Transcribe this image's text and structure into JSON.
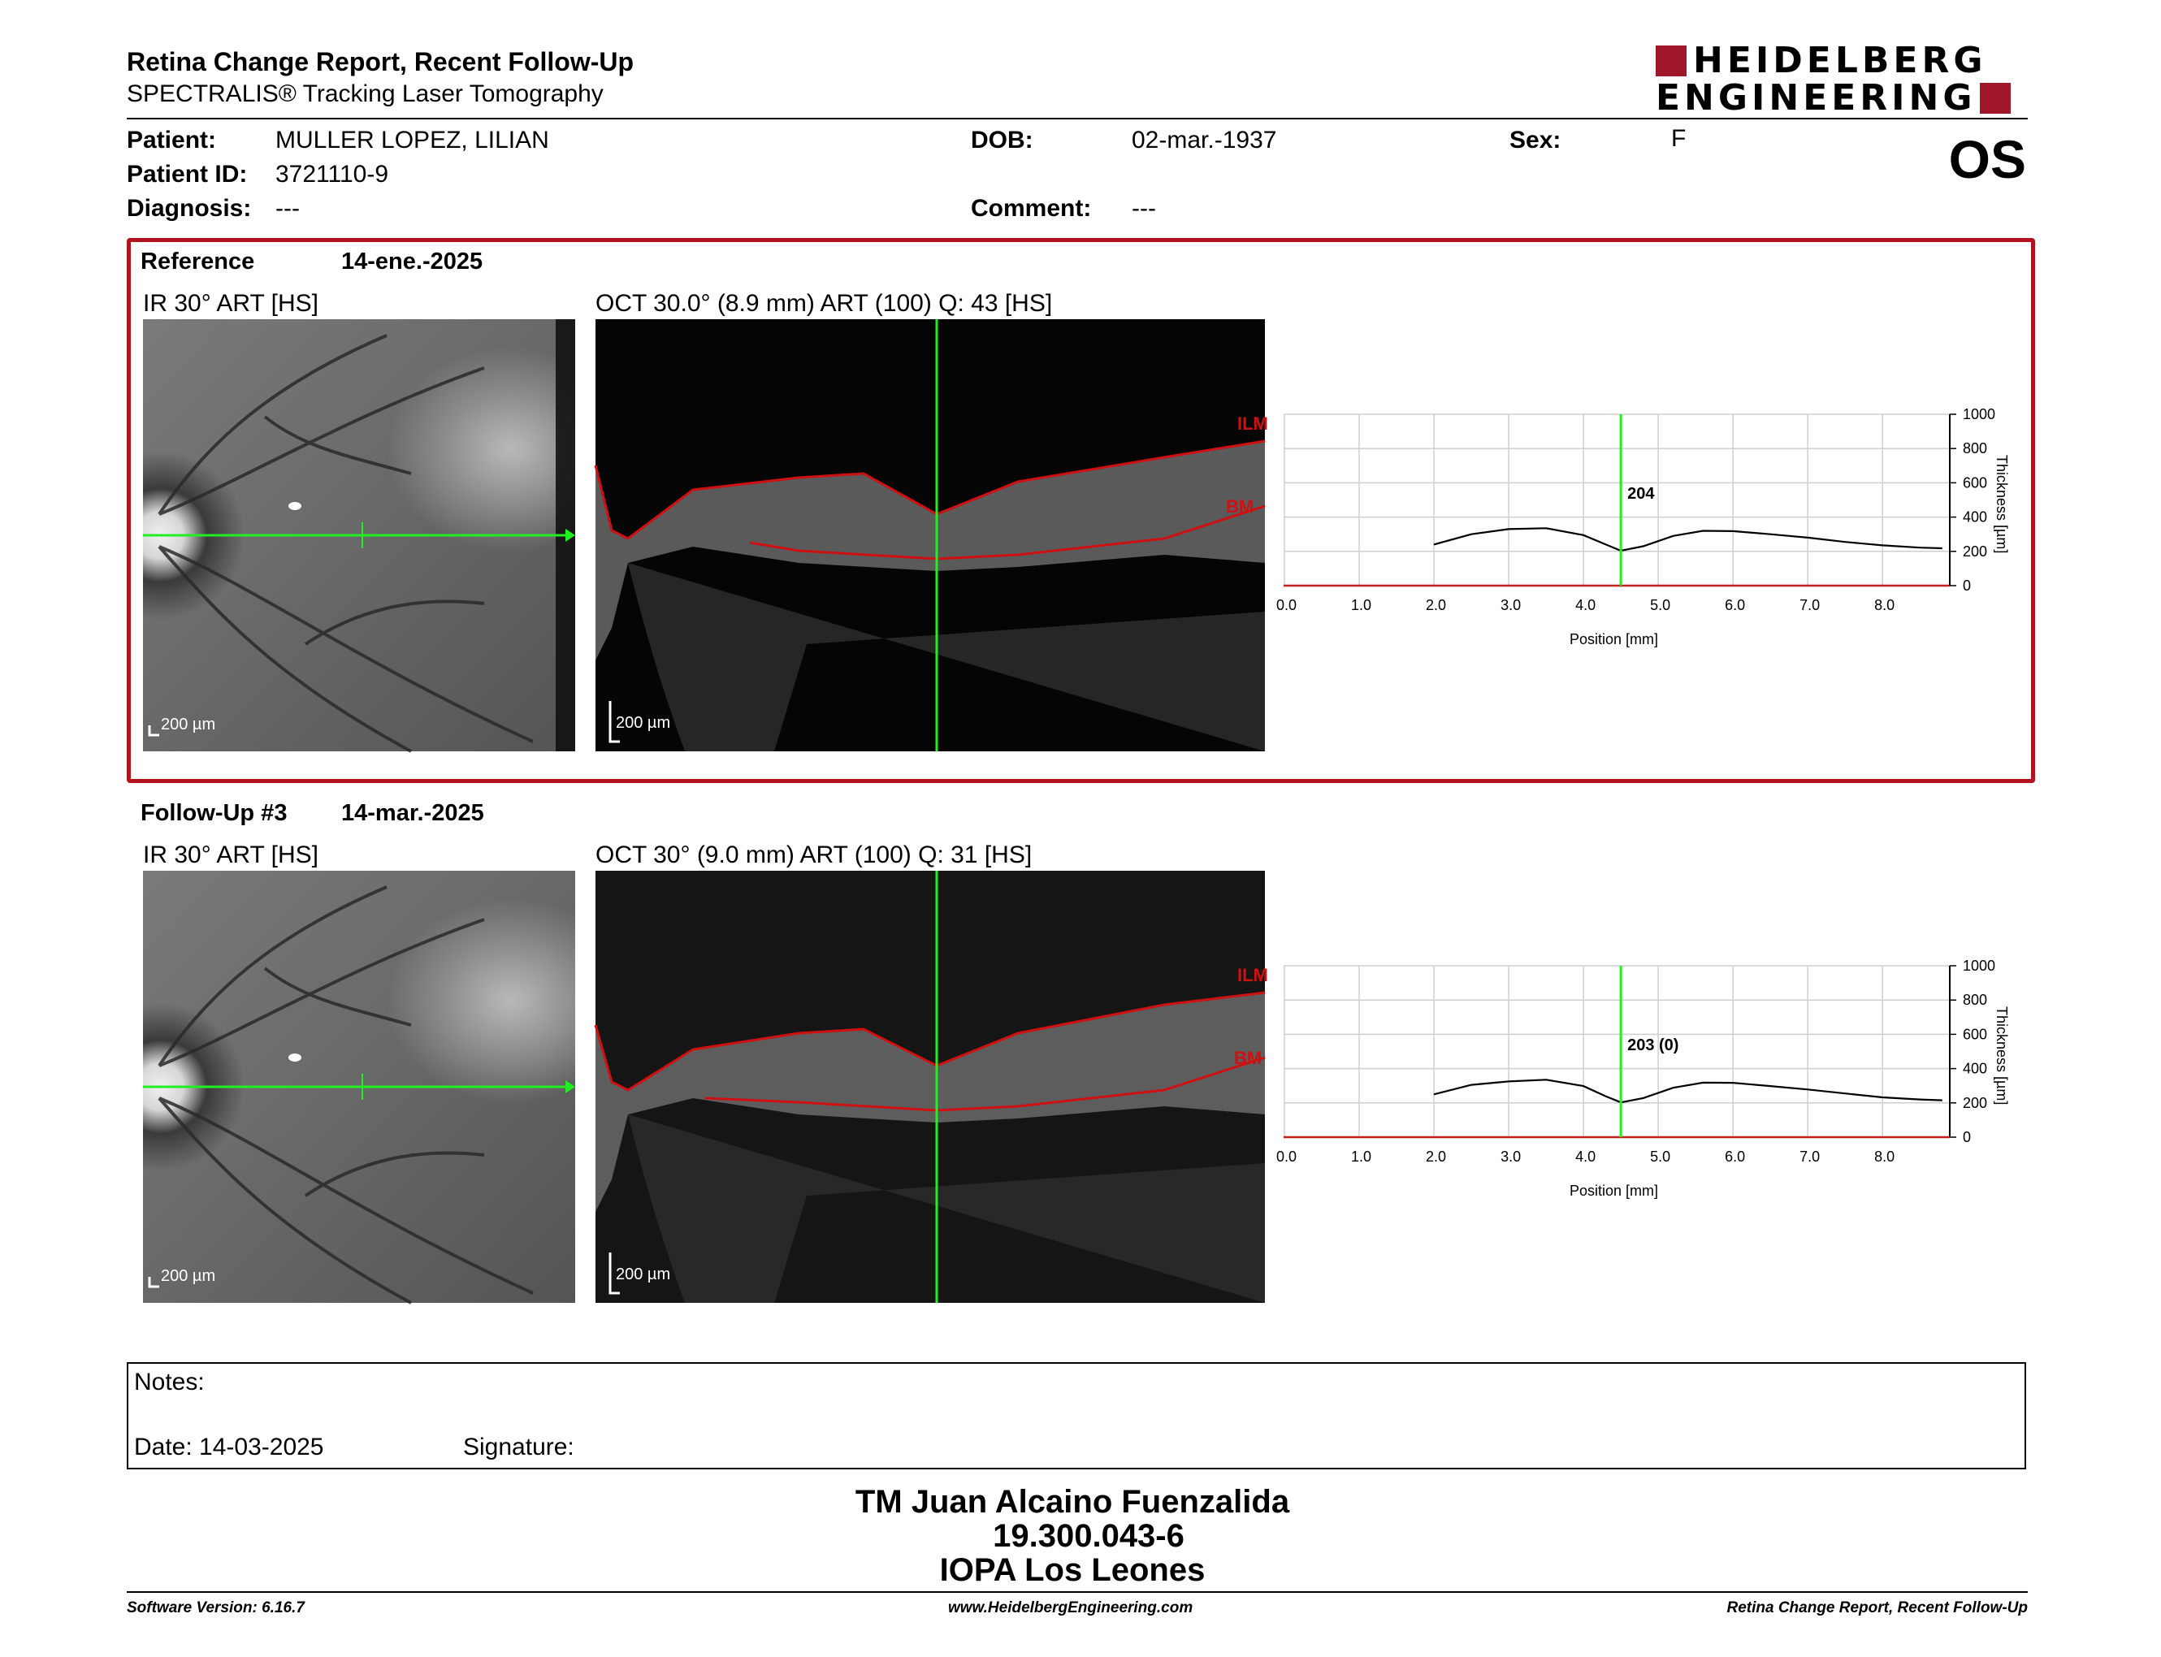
{
  "header": {
    "title": "Retina Change Report, Recent Follow-Up",
    "subtitle": "SPECTRALIS® Tracking Laser Tomography",
    "logo_line1": "HEIDELBERG",
    "logo_line2": "ENGINEERING",
    "eye": "OS"
  },
  "patient": {
    "patient_label": "Patient:",
    "patient_value": "MULLER LOPEZ, LILIAN",
    "id_label": "Patient ID:",
    "id_value": "3721110-9",
    "diagnosis_label": "Diagnosis:",
    "diagnosis_value": "---",
    "dob_label": "DOB:",
    "dob_value": "02-mar.-1937",
    "comment_label": "Comment:",
    "comment_value": "---",
    "sex_label": "Sex:",
    "sex_value": "F"
  },
  "reference": {
    "label": "Reference",
    "date": "14-ene.-2025",
    "ir_caption": "IR 30° ART [HS]",
    "oct_caption": "OCT 30.0° (8.9 mm) ART (100) Q: 43 [HS]",
    "scale_ir": "200 µm",
    "scale_oct": "200 µm",
    "ilm": "ILM",
    "bm": "BM",
    "marker_label": "204"
  },
  "followup": {
    "label": "Follow-Up #3",
    "date": "14-mar.-2025",
    "ir_caption": "IR 30° ART [HS]",
    "oct_caption": "OCT 30° (9.0 mm) ART (100) Q: 31 [HS]",
    "scale_ir": "200 µm",
    "scale_oct": "200 µm",
    "ilm": "ILM",
    "bm": "BM",
    "marker_label": "203 (0)"
  },
  "chart_data": [
    {
      "type": "line",
      "xlabel": "Position [mm]",
      "ylabel": "Thickness [µm]",
      "xlim": [
        0,
        8.9
      ],
      "ylim": [
        0,
        1000
      ],
      "xticks": [
        "0.0",
        "1.0",
        "2.0",
        "3.0",
        "4.0",
        "5.0",
        "6.0",
        "7.0",
        "8.0"
      ],
      "yticks": [
        "0",
        "200",
        "400",
        "600",
        "800",
        "1000"
      ],
      "grid": true,
      "marker_x": 4.5,
      "marker_value": "204",
      "series": [
        {
          "x": [
            2.0,
            2.5,
            3.0,
            3.5,
            4.0,
            4.3,
            4.5,
            4.8,
            5.2,
            5.6,
            6.0,
            6.5,
            7.0,
            7.5,
            8.0,
            8.5,
            8.8
          ],
          "y": [
            240,
            300,
            330,
            335,
            295,
            240,
            204,
            230,
            290,
            320,
            318,
            300,
            280,
            255,
            235,
            222,
            218
          ]
        }
      ]
    },
    {
      "type": "line",
      "xlabel": "Position [mm]",
      "ylabel": "Thickness [µm]",
      "xlim": [
        0,
        8.9
      ],
      "ylim": [
        0,
        1000
      ],
      "xticks": [
        "0.0",
        "1.0",
        "2.0",
        "3.0",
        "4.0",
        "5.0",
        "6.0",
        "7.0",
        "8.0"
      ],
      "yticks": [
        "0",
        "200",
        "400",
        "600",
        "800",
        "1000"
      ],
      "grid": true,
      "marker_x": 4.5,
      "marker_value": "203 (0)",
      "series": [
        {
          "x": [
            2.0,
            2.5,
            3.0,
            3.5,
            4.0,
            4.3,
            4.5,
            4.8,
            5.2,
            5.6,
            6.0,
            6.5,
            7.0,
            7.5,
            8.0,
            8.5,
            8.8
          ],
          "y": [
            250,
            305,
            325,
            335,
            298,
            238,
            203,
            228,
            288,
            318,
            317,
            298,
            278,
            255,
            232,
            220,
            215
          ]
        }
      ]
    }
  ],
  "notes": {
    "notes_label": "Notes:",
    "date_label": "Date: 14-03-2025",
    "signature_label": "Signature:"
  },
  "signatory": {
    "name": "TM Juan Alcaino Fuenzalida",
    "rut": "19.300.043-6",
    "institution": "IOPA Los Leones"
  },
  "footer": {
    "left": "Software Version: 6.16.7",
    "center": "www.HeidelbergEngineering.com",
    "right": "Retina Change Report, Recent Follow-Up"
  },
  "colors": {
    "accent": "#b3121f",
    "scan_line": "#22ee22",
    "layer_line": "#d01010"
  }
}
